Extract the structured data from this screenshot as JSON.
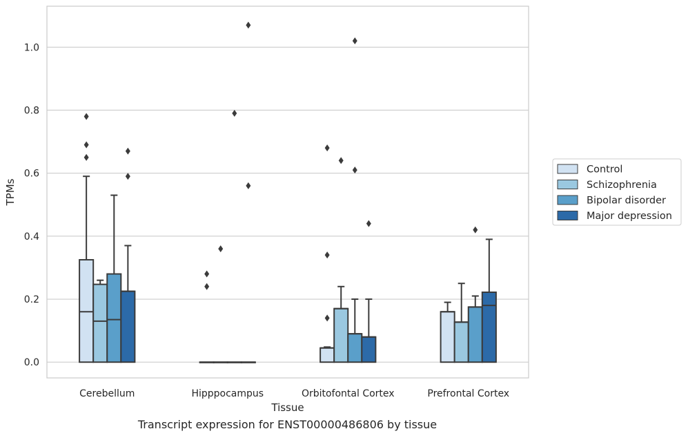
{
  "caption": "Transcript expression for ENST00000486806 by tissue",
  "chart_data": {
    "type": "boxplot",
    "xlabel": "Tissue",
    "ylabel": "TPMs",
    "ylim": [
      -0.05,
      1.13
    ],
    "yticks": [
      "0.0",
      "0.2",
      "0.4",
      "0.6",
      "0.8",
      "1.0"
    ],
    "ytick_values": [
      0.0,
      0.2,
      0.4,
      0.6,
      0.8,
      1.0
    ],
    "categories": [
      "Cerebellum",
      "Hipppocampus",
      "Orbitofontal Cortex",
      "Prefrontal Cortex"
    ],
    "grid": "horizontal",
    "legend_position": "right",
    "series": [
      {
        "name": "Control",
        "color": "#d1e2f2",
        "boxes": [
          {
            "q1": 0.0,
            "median": 0.16,
            "q3": 0.325,
            "whisker_low": 0.0,
            "whisker_high": 0.59,
            "outliers": [
              0.78,
              0.69,
              0.65
            ]
          },
          {
            "q1": 0.0,
            "median": 0.0,
            "q3": 0.0,
            "whisker_low": 0.0,
            "whisker_high": 0.0,
            "outliers": [
              0.28,
              0.24
            ]
          },
          {
            "q1": 0.0,
            "median": 0.045,
            "q3": 0.045,
            "whisker_low": 0.0,
            "whisker_high": 0.048,
            "outliers": [
              0.68,
              0.34,
              0.14
            ]
          },
          {
            "q1": 0.0,
            "median": 0.16,
            "q3": 0.16,
            "whisker_low": 0.0,
            "whisker_high": 0.19,
            "outliers": []
          }
        ]
      },
      {
        "name": "Schizophrenia",
        "color": "#9ac8e0",
        "boxes": [
          {
            "q1": 0.0,
            "median": 0.13,
            "q3": 0.247,
            "whisker_low": 0.0,
            "whisker_high": 0.26,
            "outliers": []
          },
          {
            "q1": 0.0,
            "median": 0.0,
            "q3": 0.0,
            "whisker_low": 0.0,
            "whisker_high": 0.0,
            "outliers": [
              0.36
            ]
          },
          {
            "q1": 0.0,
            "median": 0.17,
            "q3": 0.17,
            "whisker_low": 0.0,
            "whisker_high": 0.24,
            "outliers": [
              0.64
            ]
          },
          {
            "q1": 0.0,
            "median": 0.127,
            "q3": 0.127,
            "whisker_low": 0.0,
            "whisker_high": 0.25,
            "outliers": []
          }
        ]
      },
      {
        "name": "Bipolar disorder",
        "color": "#5a9fca",
        "boxes": [
          {
            "q1": 0.0,
            "median": 0.135,
            "q3": 0.28,
            "whisker_low": 0.0,
            "whisker_high": 0.53,
            "outliers": []
          },
          {
            "q1": 0.0,
            "median": 0.0,
            "q3": 0.0,
            "whisker_low": 0.0,
            "whisker_high": 0.0,
            "outliers": [
              0.79
            ]
          },
          {
            "q1": 0.0,
            "median": 0.09,
            "q3": 0.09,
            "whisker_low": 0.0,
            "whisker_high": 0.2,
            "outliers": [
              1.02,
              0.61
            ]
          },
          {
            "q1": 0.0,
            "median": 0.175,
            "q3": 0.175,
            "whisker_low": 0.0,
            "whisker_high": 0.21,
            "outliers": [
              0.42
            ]
          }
        ]
      },
      {
        "name": "Major depression",
        "color": "#2c6aa8",
        "boxes": [
          {
            "q1": 0.0,
            "median": 0.225,
            "q3": 0.225,
            "whisker_low": 0.0,
            "whisker_high": 0.37,
            "outliers": [
              0.67,
              0.59
            ]
          },
          {
            "q1": 0.0,
            "median": 0.0,
            "q3": 0.0,
            "whisker_low": 0.0,
            "whisker_high": 0.0,
            "outliers": [
              1.07,
              0.56
            ]
          },
          {
            "q1": 0.0,
            "median": 0.08,
            "q3": 0.08,
            "whisker_low": 0.0,
            "whisker_high": 0.2,
            "outliers": [
              0.44
            ]
          },
          {
            "q1": 0.0,
            "median": 0.18,
            "q3": 0.222,
            "whisker_low": 0.0,
            "whisker_high": 0.39,
            "outliers": []
          }
        ]
      }
    ]
  }
}
